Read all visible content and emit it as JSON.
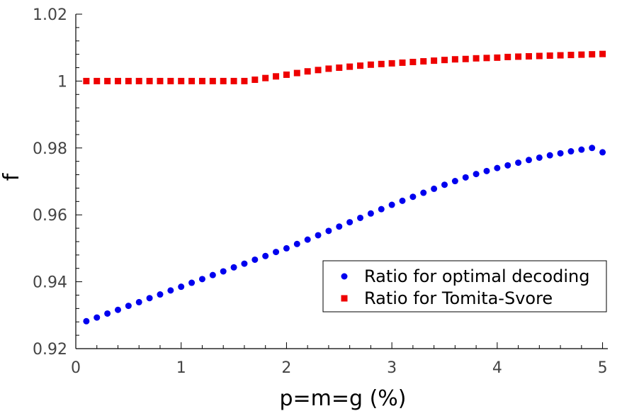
{
  "chart_data": {
    "type": "scatter",
    "title": "",
    "xlabel": "p=m=g (%)",
    "ylabel": "f",
    "xlim": [
      0,
      5.05
    ],
    "ylim": [
      0.92,
      1.02
    ],
    "x_ticks": [
      0,
      1,
      2,
      3,
      4,
      5
    ],
    "x_tick_labels": [
      "0",
      "1",
      "2",
      "3",
      "4",
      "5"
    ],
    "y_ticks": [
      0.92,
      0.94,
      0.96,
      0.98,
      1.0,
      1.02
    ],
    "y_tick_labels": [
      "0.92",
      "0.94",
      "0.96",
      "0.98",
      "1",
      "1.02"
    ],
    "grid": false,
    "legend_position": "bottom-right",
    "series": [
      {
        "name": "Ratio for optimal decoding",
        "marker": "circle",
        "color": "#0000ee",
        "x": [
          0.1,
          0.2,
          0.3,
          0.4,
          0.5,
          0.6,
          0.7,
          0.8,
          0.9,
          1.0,
          1.1,
          1.2,
          1.3,
          1.4,
          1.5,
          1.6,
          1.7,
          1.8,
          1.9,
          2.0,
          2.1,
          2.2,
          2.3,
          2.4,
          2.5,
          2.6,
          2.7,
          2.8,
          2.9,
          3.0,
          3.1,
          3.2,
          3.3,
          3.4,
          3.5,
          3.6,
          3.7,
          3.8,
          3.9,
          4.0,
          4.1,
          4.2,
          4.3,
          4.4,
          4.5,
          4.6,
          4.7,
          4.8,
          4.9,
          5.0
        ],
        "values": [
          0.9282,
          0.9293,
          0.9305,
          0.9316,
          0.9328,
          0.9339,
          0.9351,
          0.9362,
          0.9374,
          0.9385,
          0.9397,
          0.9408,
          0.942,
          0.9431,
          0.9443,
          0.9454,
          0.9466,
          0.9477,
          0.9489,
          0.95,
          0.9513,
          0.9526,
          0.9539,
          0.9552,
          0.9565,
          0.9578,
          0.9591,
          0.9604,
          0.9617,
          0.963,
          0.9642,
          0.9654,
          0.9666,
          0.9678,
          0.969,
          0.9701,
          0.9712,
          0.9722,
          0.9731,
          0.974,
          0.9748,
          0.9756,
          0.9764,
          0.9771,
          0.9778,
          0.9784,
          0.979,
          0.9795,
          0.98,
          0.9787
        ]
      },
      {
        "name": "Ratio for Tomita-Svore",
        "marker": "square",
        "color": "#ee0000",
        "x": [
          0.1,
          0.2,
          0.3,
          0.4,
          0.5,
          0.6,
          0.7,
          0.8,
          0.9,
          1.0,
          1.1,
          1.2,
          1.3,
          1.4,
          1.5,
          1.6,
          1.7,
          1.8,
          1.9,
          2.0,
          2.1,
          2.2,
          2.3,
          2.4,
          2.5,
          2.6,
          2.7,
          2.8,
          2.9,
          3.0,
          3.1,
          3.2,
          3.3,
          3.4,
          3.5,
          3.6,
          3.7,
          3.8,
          3.9,
          4.0,
          4.1,
          4.2,
          4.3,
          4.4,
          4.5,
          4.6,
          4.7,
          4.8,
          4.9,
          5.0
        ],
        "values": [
          1.0,
          1.0,
          1.0,
          1.0,
          1.0,
          1.0,
          1.0,
          1.0,
          1.0,
          1.0,
          1.0,
          1.0,
          1.0,
          1.0,
          1.0,
          1.0,
          1.0004,
          1.0009,
          1.0014,
          1.0019,
          1.0024,
          1.0029,
          1.0033,
          1.0037,
          1.004,
          1.0043,
          1.0046,
          1.0049,
          1.0051,
          1.0053,
          1.0055,
          1.0057,
          1.0059,
          1.0061,
          1.0063,
          1.0065,
          1.0066,
          1.0068,
          1.0069,
          1.007,
          1.0072,
          1.0073,
          1.0074,
          1.0075,
          1.0076,
          1.0077,
          1.0078,
          1.0079,
          1.008,
          1.0081
        ]
      }
    ]
  },
  "colors": {
    "axis": "#000000",
    "tick_label": "#444444",
    "optimal": "#0000ee",
    "tomita": "#ee0000"
  }
}
